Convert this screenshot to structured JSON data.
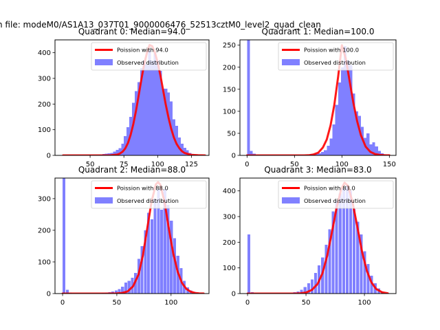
{
  "figure": {
    "suptitle": "n file: modeM0/AS1A13_037T01_9000006476_52513cztM0_level2_quad_clean"
  },
  "colors": {
    "poisson": "#ff0000",
    "observed": "#8080ff",
    "axes": "#000000"
  },
  "chart_data": [
    {
      "type": "bar",
      "title": "Quadrant 0: Median=94.0",
      "xlim": [
        24,
        138
      ],
      "ylim": [
        0,
        450
      ],
      "xticks": [
        50,
        75,
        100,
        125
      ],
      "yticks": [
        0,
        100,
        200,
        300,
        400
      ],
      "legend": {
        "location": "top-right",
        "entries": [
          "Poission with 94.0",
          "Observed distribution"
        ]
      },
      "median": 94.0,
      "bin_width": 2.1,
      "hist_x": [
        33,
        35,
        37,
        39,
        41,
        43,
        45,
        47,
        49,
        51,
        53,
        55,
        57,
        59,
        61,
        63,
        65,
        67,
        69,
        71,
        73,
        75,
        77,
        79,
        81,
        83,
        85,
        87,
        89,
        91,
        93,
        95,
        97,
        99,
        101,
        103,
        105,
        107,
        109,
        111,
        113,
        115,
        117,
        119,
        121,
        123,
        125,
        127,
        129,
        131,
        133
      ],
      "hist_y": [
        0,
        0,
        0,
        0,
        0,
        0,
        0,
        0,
        0,
        0,
        0,
        0,
        3,
        5,
        7,
        8,
        10,
        15,
        22,
        28,
        45,
        75,
        110,
        150,
        205,
        250,
        285,
        340,
        370,
        355,
        410,
        370,
        400,
        370,
        330,
        260,
        260,
        245,
        210,
        140,
        115,
        70,
        45,
        30,
        20,
        10,
        6,
        3,
        2,
        1,
        0
      ],
      "poisson_x": [
        30,
        35,
        40,
        45,
        50,
        55,
        60,
        65,
        70,
        72,
        74,
        76,
        78,
        80,
        82,
        84,
        86,
        88,
        90,
        92,
        94,
        96,
        98,
        100,
        102,
        104,
        106,
        108,
        110,
        112,
        114,
        116,
        118,
        120,
        125,
        130,
        135
      ],
      "poisson_y": [
        0,
        0,
        0,
        0,
        0,
        0,
        0,
        0.3,
        3,
        7,
        14,
        27,
        48,
        80,
        123,
        175,
        235,
        298,
        355,
        398,
        430,
        425,
        400,
        362,
        312,
        255,
        198,
        147,
        104,
        70,
        45,
        28,
        16,
        9,
        2,
        0.5,
        0.1
      ]
    },
    {
      "type": "bar",
      "title": "Quadrant 1: Median=100.0",
      "xlim": [
        -7.5,
        157
      ],
      "ylim": [
        0,
        262
      ],
      "xticks": [
        0,
        50,
        100,
        150
      ],
      "yticks": [
        0,
        50,
        100,
        150,
        200,
        250
      ],
      "legend": {
        "location": "top-right",
        "entries": [
          "Poission with 100.0",
          "Observed distribution"
        ]
      },
      "median": 100.0,
      "bin_width": 3.0,
      "hist_x": [
        0,
        3,
        6,
        9,
        12,
        15,
        18,
        21,
        24,
        27,
        30,
        33,
        36,
        39,
        42,
        45,
        48,
        51,
        54,
        57,
        60,
        63,
        66,
        69,
        72,
        75,
        78,
        81,
        84,
        87,
        90,
        93,
        96,
        99,
        102,
        105,
        108,
        111,
        114,
        117,
        120,
        123,
        126,
        129,
        132,
        135,
        138,
        141,
        144,
        147,
        150
      ],
      "hist_y": [
        262,
        10,
        4,
        1,
        0,
        0,
        0,
        0,
        0,
        0,
        0,
        0,
        0,
        0,
        0,
        0,
        0,
        0,
        0,
        0,
        0,
        0,
        3,
        2,
        4,
        5,
        8,
        12,
        22,
        38,
        70,
        115,
        165,
        200,
        248,
        215,
        205,
        140,
        100,
        90,
        65,
        40,
        50,
        25,
        30,
        20,
        10,
        5,
        2,
        1,
        0
      ],
      "poisson_x": [
        0,
        20,
        40,
        55,
        60,
        65,
        70,
        75,
        80,
        84,
        88,
        92,
        96,
        100,
        104,
        108,
        112,
        116,
        120,
        125,
        130,
        135,
        140,
        145,
        150
      ],
      "poisson_y": [
        0,
        0,
        0,
        0,
        0,
        0.3,
        2,
        6,
        18,
        36,
        68,
        115,
        178,
        250,
        220,
        170,
        120,
        78,
        46,
        20,
        8,
        3,
        1,
        0.3,
        0.1
      ]
    },
    {
      "type": "bar",
      "title": "Quadrant 2: Median=88.0",
      "xlim": [
        -7,
        135
      ],
      "ylim": [
        0,
        365
      ],
      "xticks": [
        0,
        50,
        100
      ],
      "yticks": [
        0,
        100,
        200,
        300
      ],
      "legend": {
        "location": "top-right",
        "entries": [
          "Poission with 88.0",
          "Observed distribution"
        ]
      },
      "median": 88.0,
      "bin_width": 2.6,
      "hist_x": [
        0,
        3,
        6,
        9,
        12,
        15,
        18,
        21,
        24,
        27,
        30,
        33,
        36,
        39,
        42,
        45,
        48,
        51,
        54,
        57,
        60,
        63,
        66,
        69,
        72,
        75,
        78,
        81,
        84,
        87,
        90,
        93,
        96,
        99,
        102,
        105,
        108,
        111,
        114,
        117,
        120,
        123,
        126,
        129
      ],
      "hist_y": [
        365,
        12,
        3,
        1,
        0,
        0,
        0,
        0,
        0,
        0,
        0,
        1,
        2,
        3,
        4,
        6,
        10,
        14,
        22,
        35,
        40,
        50,
        65,
        110,
        150,
        200,
        255,
        235,
        300,
        330,
        265,
        330,
        280,
        230,
        175,
        120,
        80,
        40,
        20,
        10,
        5,
        2,
        1,
        0
      ],
      "poisson_x": [
        0,
        20,
        40,
        50,
        55,
        60,
        65,
        70,
        74,
        78,
        82,
        86,
        88,
        90,
        94,
        98,
        102,
        106,
        110,
        114,
        118,
        122,
        126,
        130
      ],
      "poisson_y": [
        0,
        0,
        0,
        0.5,
        2,
        7,
        23,
        60,
        120,
        205,
        290,
        345,
        352,
        345,
        290,
        205,
        128,
        70,
        34,
        15,
        6,
        2,
        0.7,
        0.2
      ]
    },
    {
      "type": "bar",
      "title": "Quadrant 3: Median=83.0",
      "xlim": [
        -6.5,
        127
      ],
      "ylim": [
        0,
        450
      ],
      "xticks": [
        0,
        50,
        100
      ],
      "yticks": [
        0,
        100,
        200,
        300,
        400
      ],
      "legend": {
        "location": "top-right",
        "entries": [
          "Poission with 83.0",
          "Observed distribution"
        ]
      },
      "median": 83.0,
      "bin_width": 2.4,
      "hist_x": [
        0,
        3,
        6,
        9,
        12,
        15,
        18,
        21,
        24,
        27,
        30,
        33,
        36,
        39,
        42,
        45,
        48,
        51,
        54,
        57,
        60,
        63,
        66,
        69,
        72,
        75,
        78,
        81,
        84,
        87,
        90,
        93,
        96,
        99,
        102,
        105,
        108,
        111,
        114,
        117,
        120
      ],
      "hist_y": [
        230,
        5,
        1,
        0,
        0,
        0,
        0,
        0,
        0,
        0,
        0,
        1,
        2,
        5,
        8,
        15,
        25,
        40,
        55,
        80,
        110,
        140,
        190,
        250,
        320,
        360,
        390,
        410,
        420,
        400,
        330,
        280,
        230,
        165,
        115,
        70,
        40,
        20,
        8,
        3,
        1
      ],
      "poisson_x": [
        0,
        20,
        40,
        45,
        50,
        55,
        60,
        64,
        68,
        72,
        76,
        80,
        83,
        86,
        90,
        94,
        98,
        102,
        106,
        110,
        115,
        120
      ],
      "poisson_y": [
        0,
        0,
        0,
        1,
        4,
        14,
        38,
        78,
        145,
        235,
        330,
        405,
        432,
        420,
        352,
        258,
        162,
        90,
        43,
        18,
        5,
        1
      ]
    }
  ]
}
